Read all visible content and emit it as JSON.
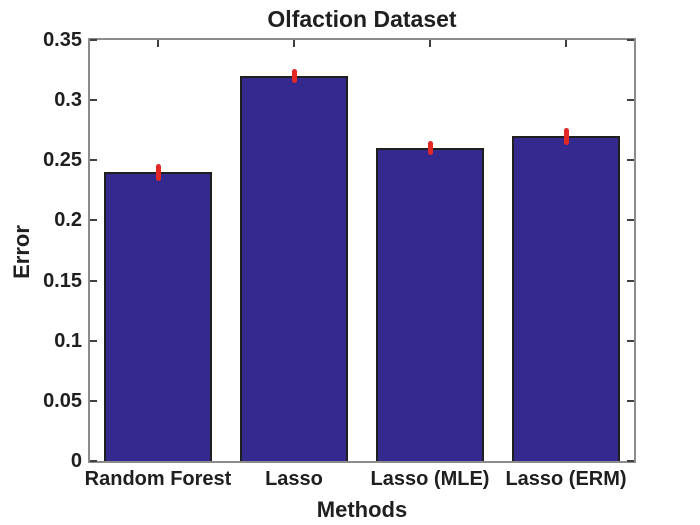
{
  "chart_data": {
    "type": "bar",
    "title": "Olfaction Dataset",
    "xlabel": "Methods",
    "ylabel": "Error",
    "categories": [
      "Random Forest",
      "Lasso",
      "Lasso (MLE)",
      "Lasso (ERM)"
    ],
    "values": [
      0.24,
      0.32,
      0.26,
      0.27
    ],
    "error_bars": [
      0.007,
      0.006,
      0.006,
      0.007
    ],
    "ylim": [
      0,
      0.35
    ],
    "ytick_step": 0.05,
    "ytick_labels": [
      "0",
      "0.05",
      "0.1",
      "0.15",
      "0.2",
      "0.25",
      "0.3",
      "0.35"
    ],
    "grid": false,
    "legend": null,
    "bar_width_fraction": 0.8,
    "colors": {
      "bar_fill": "#34298e",
      "bar_edge": "#1f1f1f",
      "error_mark": "#e12826",
      "axis_border": "#8b8b8b",
      "tick": "#404040",
      "text": "#1f1f1f",
      "background": "#ffffff"
    }
  }
}
